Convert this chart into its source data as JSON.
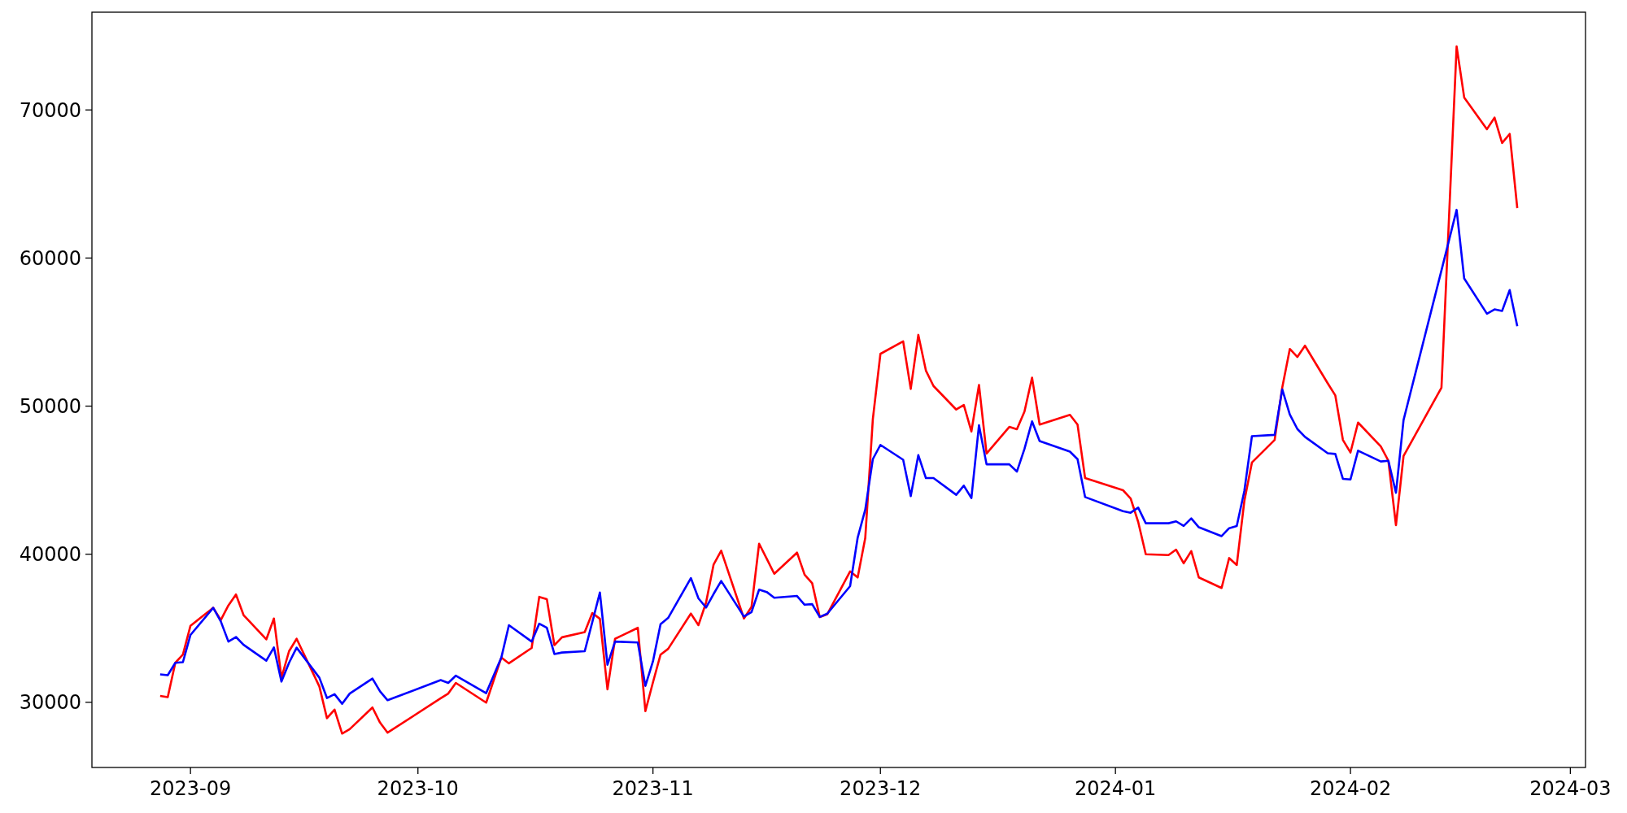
{
  "chart_data": {
    "type": "line",
    "x": [
      "2023-08-28",
      "2023-08-29",
      "2023-08-30",
      "2023-08-31",
      "2023-09-01",
      "2023-09-04",
      "2023-09-05",
      "2023-09-06",
      "2023-09-07",
      "2023-09-08",
      "2023-09-11",
      "2023-09-12",
      "2023-09-13",
      "2023-09-14",
      "2023-09-15",
      "2023-09-18",
      "2023-09-19",
      "2023-09-20",
      "2023-09-21",
      "2023-09-22",
      "2023-09-25",
      "2023-09-26",
      "2023-09-27",
      "2023-10-04",
      "2023-10-05",
      "2023-10-06",
      "2023-10-10",
      "2023-10-12",
      "2023-10-13",
      "2023-10-16",
      "2023-10-17",
      "2023-10-18",
      "2023-10-19",
      "2023-10-20",
      "2023-10-23",
      "2023-10-24",
      "2023-10-25",
      "2023-10-26",
      "2023-10-27",
      "2023-10-30",
      "2023-10-31",
      "2023-11-01",
      "2023-11-02",
      "2023-11-03",
      "2023-11-06",
      "2023-11-07",
      "2023-11-08",
      "2023-11-09",
      "2023-11-10",
      "2023-11-13",
      "2023-11-14",
      "2023-11-15",
      "2023-11-16",
      "2023-11-17",
      "2023-11-20",
      "2023-11-21",
      "2023-11-22",
      "2023-11-23",
      "2023-11-24",
      "2023-11-27",
      "2023-11-28",
      "2023-11-29",
      "2023-11-30",
      "2023-12-01",
      "2023-12-04",
      "2023-12-05",
      "2023-12-06",
      "2023-12-07",
      "2023-12-08",
      "2023-12-11",
      "2023-12-12",
      "2023-12-13",
      "2023-12-14",
      "2023-12-15",
      "2023-12-18",
      "2023-12-19",
      "2023-12-20",
      "2023-12-21",
      "2023-12-22",
      "2023-12-26",
      "2023-12-27",
      "2023-12-28",
      "2024-01-02",
      "2024-01-03",
      "2024-01-04",
      "2024-01-05",
      "2024-01-08",
      "2024-01-09",
      "2024-01-10",
      "2024-01-11",
      "2024-01-12",
      "2024-01-15",
      "2024-01-16",
      "2024-01-17",
      "2024-01-18",
      "2024-01-19",
      "2024-01-22",
      "2024-01-23",
      "2024-01-24",
      "2024-01-25",
      "2024-01-26",
      "2024-01-29",
      "2024-01-30",
      "2024-01-31",
      "2024-02-01",
      "2024-02-02",
      "2024-02-05",
      "2024-02-06",
      "2024-02-07",
      "2024-02-08",
      "2024-02-13",
      "2024-02-15",
      "2024-02-16",
      "2024-02-19",
      "2024-02-20",
      "2024-02-21",
      "2024-02-22",
      "2024-02-23"
    ],
    "series": [
      {
        "color": "#ff0000",
        "values": [
          30430,
          30350,
          32670,
          33220,
          35170,
          36380,
          35560,
          36540,
          37280,
          35890,
          34250,
          35660,
          31660,
          33450,
          34290,
          31070,
          28930,
          29510,
          27890,
          28190,
          29650,
          28630,
          27950,
          30270,
          30590,
          31310,
          29980,
          33020,
          32630,
          33670,
          37120,
          36970,
          33860,
          34390,
          34740,
          36030,
          35640,
          30880,
          34290,
          35030,
          29410,
          31350,
          33220,
          33610,
          35990,
          35210,
          36730,
          39310,
          40240,
          35660,
          36440,
          40710,
          39700,
          38680,
          40110,
          38620,
          38040,
          35760,
          35950,
          38840,
          38430,
          41090,
          49120,
          53530,
          54370,
          51160,
          54810,
          52400,
          51360,
          49770,
          50080,
          48290,
          51430,
          46800,
          48600,
          48440,
          49630,
          51920,
          48750,
          49410,
          48750,
          45140,
          44320,
          43770,
          42180,
          40000,
          39940,
          40310,
          39390,
          40210,
          38430,
          37720,
          39740,
          39270,
          43590,
          46190,
          47720,
          51250,
          53860,
          53320,
          54080,
          51540,
          50720,
          47720,
          46870,
          48890,
          47280,
          46310,
          41960,
          46630,
          51250,
          74290,
          70840,
          68700,
          69480,
          67770,
          68380,
          63370
        ]
      },
      {
        "color": "#0000ff",
        "values": [
          31890,
          31830,
          32670,
          32710,
          34550,
          36380,
          35460,
          34100,
          34410,
          33880,
          32810,
          33710,
          31400,
          32670,
          33690,
          31660,
          30290,
          30550,
          29900,
          30590,
          31600,
          30740,
          30140,
          31500,
          31310,
          31800,
          30620,
          33020,
          35210,
          34100,
          35310,
          35030,
          33260,
          33360,
          33450,
          35420,
          37410,
          32540,
          34100,
          34040,
          31110,
          32770,
          35270,
          35700,
          38390,
          37020,
          36400,
          37320,
          38190,
          35790,
          36090,
          37610,
          37450,
          37060,
          37180,
          36590,
          36630,
          35760,
          35990,
          37840,
          41120,
          43010,
          46420,
          47380,
          46380,
          43920,
          46690,
          45140,
          45140,
          44010,
          44630,
          43790,
          48710,
          46070,
          46070,
          45580,
          47110,
          48970,
          47640,
          46930,
          46420,
          43860,
          42910,
          42800,
          43150,
          42090,
          42090,
          42220,
          41910,
          42420,
          41820,
          41220,
          41760,
          41900,
          44270,
          47970,
          48060,
          51130,
          49430,
          48450,
          47920,
          46820,
          46770,
          45090,
          45050,
          46990,
          46260,
          46310,
          44150,
          49060,
          59160,
          63250,
          58620,
          56240,
          56530,
          56430,
          57840,
          55390
        ]
      }
    ],
    "xlim": [
      "2023-08-19",
      "2024-03-03"
    ],
    "xticks": [
      "2023-09",
      "2023-10",
      "2023-11",
      "2023-12",
      "2024-01",
      "2024-02",
      "2024-03"
    ],
    "ylim": [
      25600,
      76600
    ],
    "yticks": [
      30000,
      40000,
      50000,
      60000,
      70000
    ]
  }
}
